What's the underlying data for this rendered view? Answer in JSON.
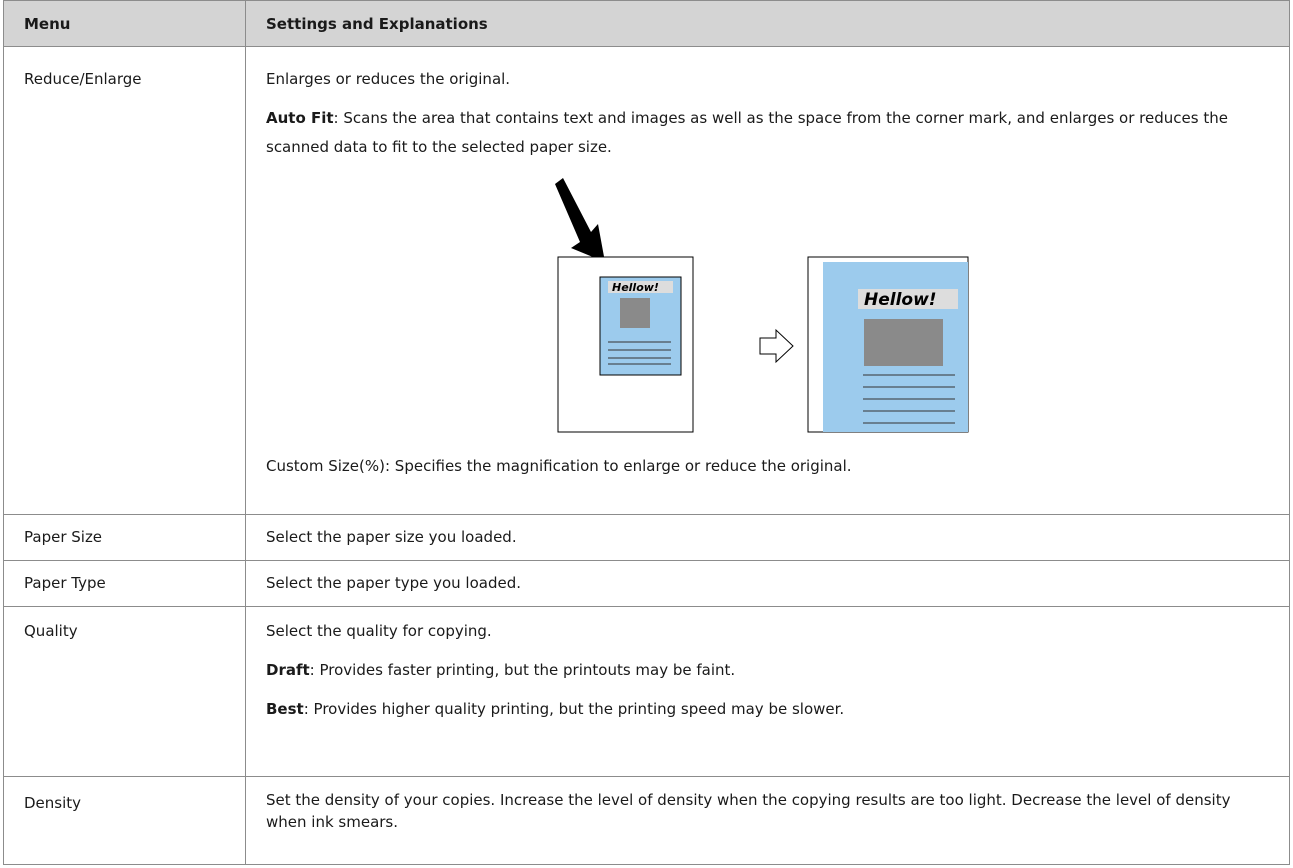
{
  "table": {
    "header": [
      "Menu",
      "Settings and Explanations"
    ],
    "rows": [
      {
        "menu": "Reduce/Enlarge",
        "paragraphs": [
          {
            "text": "Enlarges or reduces the original."
          },
          {
            "term": "Auto Fit",
            "text": ": Scans the area that contains text and images as well as the space from the corner mark, and enlarges or reduces the scanned data to fit to the selected paper size."
          }
        ],
        "figure_labels": [
          "Hellow!",
          "Hellow!"
        ],
        "note": "Custom Size(%): Specifies the magnification to enlarge or reduce the original."
      },
      {
        "menu": "Paper Size",
        "paragraphs": [
          {
            "text": "Select the paper size you loaded."
          }
        ]
      },
      {
        "menu": "Paper Type",
        "paragraphs": [
          {
            "text": "Select the paper type you loaded."
          }
        ]
      },
      {
        "menu": "Quality",
        "paragraphs": [
          {
            "text": "Select the quality for copying."
          },
          {
            "term": "Draft",
            "text": ": Provides faster printing, but the printouts may be faint."
          },
          {
            "term": "Best",
            "text": ": Provides higher quality printing, but the printing speed may be slower."
          }
        ]
      },
      {
        "menu": "Density",
        "paragraphs": [
          {
            "text": "Set the density of your copies. Increase the level of density when the copying results are too light. Decrease the level of density when ink smears."
          }
        ]
      }
    ]
  }
}
